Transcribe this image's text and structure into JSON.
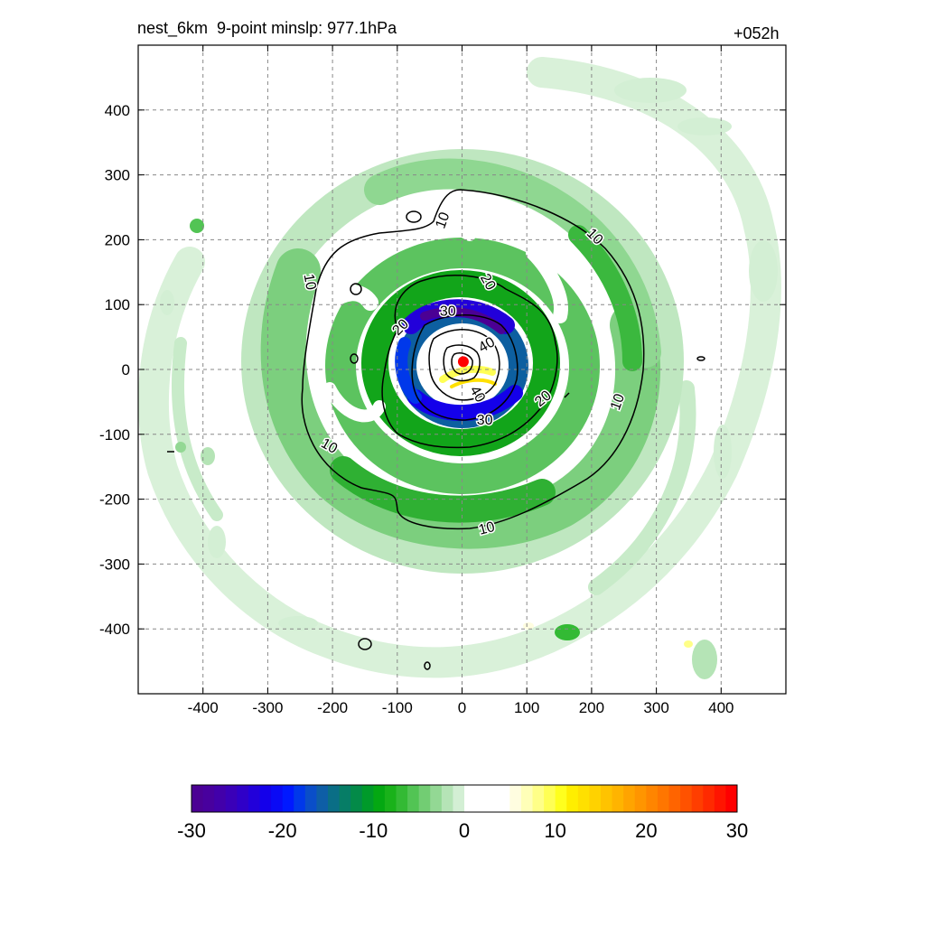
{
  "header": {
    "title": "nest_6km  9-point minslp: 977.1hPa",
    "lead_time": "+052h"
  },
  "chart_data": {
    "type": "heatmap",
    "xlim": [
      -500,
      500
    ],
    "ylim": [
      -500,
      500
    ],
    "x_ticks": [
      -400,
      -300,
      -200,
      -100,
      0,
      100,
      200,
      300,
      400
    ],
    "y_ticks": [
      400,
      300,
      200,
      100,
      0,
      -100,
      -200,
      -300,
      -400
    ],
    "grid": true,
    "grid_style": "dashed",
    "center_marker": {
      "x": 2,
      "y": 12,
      "color": "#ff0000"
    },
    "contour_levels": [
      10,
      20,
      30,
      40
    ],
    "contour_labels": [
      {
        "text": "10",
        "x": -30,
        "y": 230,
        "rotate": -70
      },
      {
        "text": "10",
        "x": 205,
        "y": 205,
        "rotate": 45
      },
      {
        "text": "10",
        "x": -235,
        "y": 135,
        "rotate": 80
      },
      {
        "text": "10",
        "x": 240,
        "y": -50,
        "rotate": -70
      },
      {
        "text": "10",
        "x": -205,
        "y": -118,
        "rotate": 30
      },
      {
        "text": "10",
        "x": 38,
        "y": -245,
        "rotate": -15
      },
      {
        "text": "20",
        "x": 40,
        "y": 135,
        "rotate": 60
      },
      {
        "text": "20",
        "x": -95,
        "y": 65,
        "rotate": -45
      },
      {
        "text": "20",
        "x": 125,
        "y": -45,
        "rotate": -40
      },
      {
        "text": "30",
        "x": -22,
        "y": 90,
        "rotate": 0
      },
      {
        "text": "30",
        "x": 35,
        "y": -78,
        "rotate": 0
      },
      {
        "text": "40",
        "x": 38,
        "y": 38,
        "rotate": -30
      },
      {
        "text": "40",
        "x": 24,
        "y": -38,
        "rotate": 60
      }
    ],
    "colorbar": {
      "min": -30,
      "max": 30,
      "tick_labels": [
        "-30",
        "-20",
        "-10",
        "0",
        "10",
        "20",
        "30"
      ],
      "colors": [
        "#4b0094",
        "#48009e",
        "#4200aa",
        "#3a00b8",
        "#2f00c8",
        "#2200da",
        "#1400ea",
        "#0a0af5",
        "#0019ff",
        "#0038ea",
        "#0a4ec8",
        "#0e5ea6",
        "#0a6e86",
        "#067d66",
        "#038a48",
        "#009a2a",
        "#04a812",
        "#19b21a",
        "#33ba34",
        "#52c454",
        "#72cd73",
        "#93d894",
        "#b5e4b6",
        "#d3efd4",
        "#ffffff",
        "#ffffff",
        "#ffffff",
        "#ffffff",
        "#fffde0",
        "#ffffb8",
        "#ffff88",
        "#ffff55",
        "#ffff1e",
        "#ffee00",
        "#ffe000",
        "#ffd200",
        "#ffc300",
        "#ffb400",
        "#ffa400",
        "#ff9500",
        "#ff8500",
        "#ff7600",
        "#ff6400",
        "#ff5200",
        "#ff3e00",
        "#ff2a00",
        "#ff1500",
        "#ff0000"
      ]
    }
  }
}
